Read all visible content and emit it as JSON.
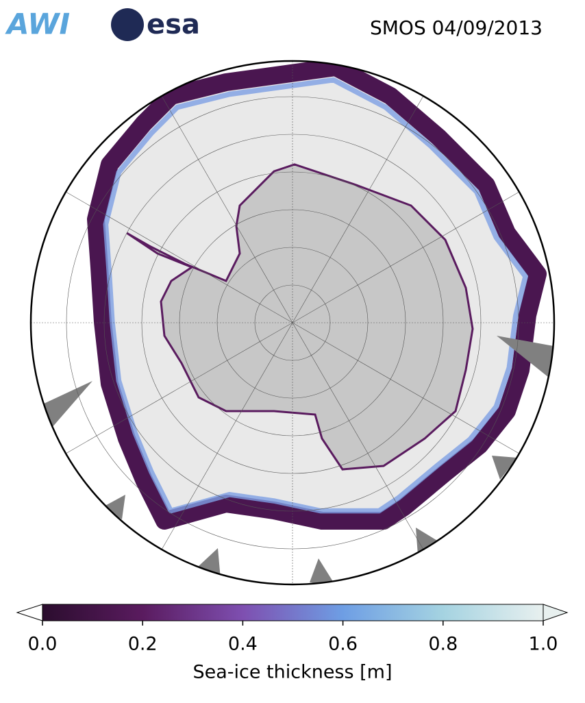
{
  "header": {
    "logos": [
      "AWI",
      "esa"
    ],
    "title": "SMOS 04/09/2013"
  },
  "colorbar": {
    "label": "Sea-ice thickness [m]",
    "lim": [
      0,
      1
    ],
    "ticks": [
      {
        "value": 0,
        "label": "0.0"
      },
      {
        "value": 0.2,
        "label": "0.2"
      },
      {
        "value": 0.4,
        "label": "0.4"
      },
      {
        "value": 0.6,
        "label": "0.6"
      },
      {
        "value": 0.8,
        "label": "0.8"
      },
      {
        "value": 1,
        "label": "1.0"
      }
    ],
    "colors": [
      "#2b0d2e",
      "#5a1b5f",
      "#7e4fb0",
      "#6e9ee4",
      "#a5d3e1",
      "#e8f0ef"
    ]
  }
}
